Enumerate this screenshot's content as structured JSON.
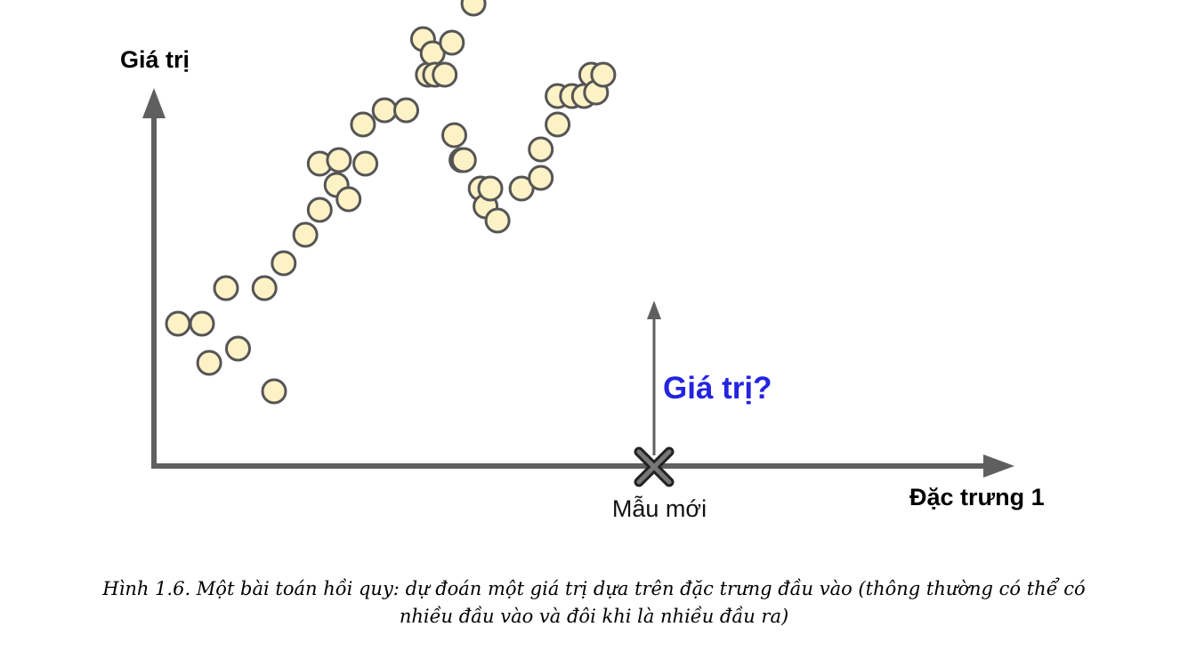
{
  "chart_data": {
    "type": "scatter",
    "ylabel": "Giá trị",
    "xlabel": "Đặc trưng 1",
    "x": [
      1.0,
      2.0,
      2.3,
      3.0,
      3.5,
      4.6,
      5.0,
      5.4,
      6.3,
      6.9,
      6.9,
      7.6,
      7.7,
      8.1,
      8.7,
      8.8,
      9.6,
      10.5,
      11.2,
      11.4,
      11.6,
      11.7,
      12.1,
      12.4,
      12.5,
      12.8,
      12.9,
      13.3,
      13.6,
      13.8,
      14.0,
      14.3,
      15.3,
      16.1,
      16.1,
      16.8,
      16.8,
      17.4,
      17.9,
      18.2,
      18.4,
      18.7
    ],
    "y": [
      4.0,
      4.0,
      2.9,
      5.0,
      3.3,
      5.0,
      2.1,
      5.7,
      6.5,
      7.2,
      8.5,
      7.9,
      8.6,
      7.5,
      9.6,
      8.5,
      10.0,
      10.0,
      12.0,
      11.0,
      11.6,
      11.0,
      11.0,
      11.9,
      9.3,
      8.6,
      8.6,
      13.0,
      7.8,
      7.3,
      7.8,
      6.9,
      7.8,
      8.1,
      8.9,
      9.6,
      10.4,
      10.4,
      10.4,
      11.0,
      10.5,
      11.0
    ],
    "xlim": [
      0,
      21
    ],
    "ylim": [
      0,
      15
    ],
    "grid": false,
    "marker_color": "#fdf1c6",
    "marker_edge": "#555555",
    "axis_color": "#5f5f5f",
    "new_sample": {
      "label": "Mẫu mới",
      "x": 10.5,
      "question": "Giá trị?",
      "question_color": "#2424e0"
    }
  },
  "caption": {
    "line1": "Hình 1.6. Một bài toán hồi quy: dự đoán một giá trị dựa trên đặc trưng đầu vào (thông thường có thể có",
    "line2": "nhiều đầu vào và đôi khi là nhiều đầu ra)"
  }
}
